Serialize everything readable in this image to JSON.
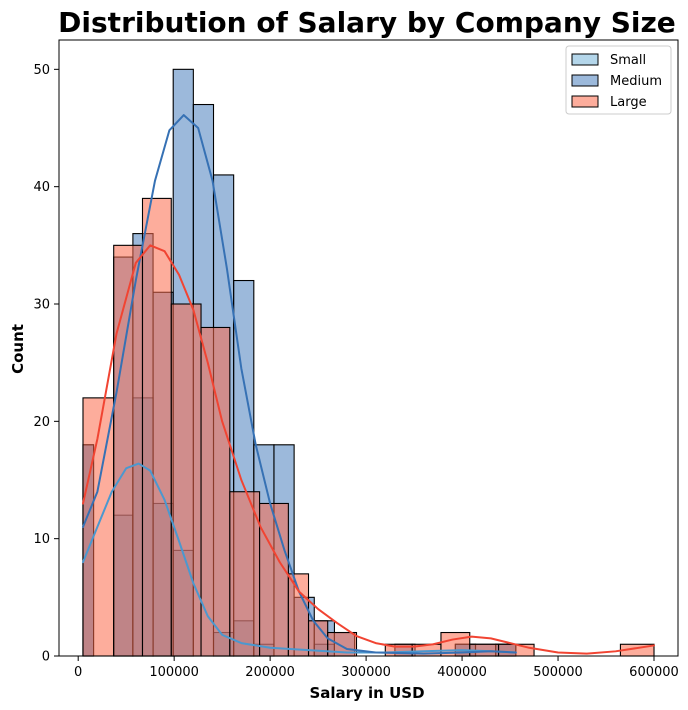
{
  "chart_data": {
    "type": "histogram",
    "title": "Distribution of Salary by Company Size",
    "xlabel": "Salary in USD",
    "ylabel": "Count",
    "xlim": [
      -20000,
      625000
    ],
    "ylim": [
      0,
      52.5
    ],
    "xticks": [
      0,
      100000,
      200000,
      300000,
      400000,
      500000,
      600000
    ],
    "yticks": [
      0,
      10,
      20,
      30,
      40,
      50
    ],
    "grid": false,
    "legend_position": "top-right",
    "series": [
      {
        "name": "Small",
        "fill": "#6aaed6",
        "fill_opacity": 0.5,
        "line": "#4b98cf",
        "bins": [
          [
            5000,
            16000,
            18
          ],
          [
            16000,
            37000,
            0
          ],
          [
            37000,
            57000,
            12
          ],
          [
            57000,
            78000,
            22
          ],
          [
            78000,
            99000,
            13
          ],
          [
            99000,
            120000,
            9
          ],
          [
            120000,
            141000,
            0
          ],
          [
            141000,
            162000,
            2
          ],
          [
            162000,
            183000,
            3
          ],
          [
            183000,
            204000,
            1
          ],
          [
            204000,
            225000,
            0
          ],
          [
            225000,
            246000,
            0
          ],
          [
            246000,
            267000,
            1
          ],
          [
            267000,
            288000,
            0
          ],
          [
            288000,
            309000,
            0
          ],
          [
            309000,
            330000,
            0
          ],
          [
            330000,
            351000,
            0
          ],
          [
            351000,
            372000,
            0
          ],
          [
            372000,
            393000,
            0
          ],
          [
            393000,
            414000,
            1
          ],
          [
            414000,
            435000,
            0
          ],
          [
            435000,
            456000,
            1
          ]
        ],
        "kde": [
          [
            5000,
            8.0
          ],
          [
            20000,
            11.0
          ],
          [
            35000,
            14.0
          ],
          [
            50000,
            16.0
          ],
          [
            63000,
            16.4
          ],
          [
            75000,
            15.8
          ],
          [
            90000,
            13.3
          ],
          [
            105000,
            9.8
          ],
          [
            120000,
            6.2
          ],
          [
            135000,
            3.4
          ],
          [
            150000,
            1.8
          ],
          [
            170000,
            1.1
          ],
          [
            200000,
            0.7
          ],
          [
            240000,
            0.5
          ],
          [
            280000,
            0.3
          ],
          [
            320000,
            0.3
          ],
          [
            360000,
            0.4
          ],
          [
            400000,
            0.5
          ],
          [
            430000,
            0.4
          ],
          [
            456000,
            0.3
          ]
        ]
      },
      {
        "name": "Medium",
        "fill": "#3a73b8",
        "fill_opacity": 0.5,
        "line": "#3671b4",
        "bins": [
          [
            5000,
            16000,
            18
          ],
          [
            16000,
            37000,
            0
          ],
          [
            37000,
            57000,
            34
          ],
          [
            57000,
            78000,
            36
          ],
          [
            78000,
            99000,
            31
          ],
          [
            99000,
            120000,
            50
          ],
          [
            120000,
            141000,
            47
          ],
          [
            141000,
            162000,
            41
          ],
          [
            162000,
            183000,
            32
          ],
          [
            183000,
            204000,
            18
          ],
          [
            204000,
            225000,
            18
          ],
          [
            225000,
            246000,
            5
          ],
          [
            246000,
            267000,
            3
          ],
          [
            267000,
            288000,
            2
          ],
          [
            288000,
            309000,
            0
          ],
          [
            309000,
            330000,
            0
          ],
          [
            330000,
            351000,
            1
          ],
          [
            351000,
            372000,
            0
          ],
          [
            372000,
            393000,
            0
          ],
          [
            393000,
            414000,
            1
          ],
          [
            414000,
            435000,
            1
          ],
          [
            435000,
            456000,
            1
          ]
        ],
        "kde": [
          [
            5000,
            11.0
          ],
          [
            20000,
            14.0
          ],
          [
            40000,
            22.5
          ],
          [
            60000,
            32.0
          ],
          [
            80000,
            40.5
          ],
          [
            95000,
            44.8
          ],
          [
            110000,
            46.1
          ],
          [
            125000,
            45.0
          ],
          [
            140000,
            40.5
          ],
          [
            155000,
            33.0
          ],
          [
            170000,
            24.5
          ],
          [
            185000,
            18.0
          ],
          [
            200000,
            13.0
          ],
          [
            215000,
            9.0
          ],
          [
            230000,
            5.5
          ],
          [
            245000,
            3.0
          ],
          [
            260000,
            1.5
          ],
          [
            280000,
            0.6
          ],
          [
            310000,
            0.3
          ],
          [
            360000,
            0.2
          ],
          [
            400000,
            0.3
          ],
          [
            430000,
            0.4
          ],
          [
            456000,
            0.3
          ]
        ]
      },
      {
        "name": "Large",
        "fill": "#fb6a4a",
        "fill_opacity": 0.55,
        "line": "#f14432",
        "bins": [
          [
            5000,
            37000,
            22
          ],
          [
            37000,
            67000,
            35
          ],
          [
            67000,
            97000,
            39
          ],
          [
            97000,
            128000,
            30
          ],
          [
            128000,
            158000,
            28
          ],
          [
            158000,
            189000,
            14
          ],
          [
            189000,
            219000,
            13
          ],
          [
            219000,
            240000,
            7
          ],
          [
            240000,
            260000,
            3
          ],
          [
            260000,
            290000,
            2
          ],
          [
            290000,
            320000,
            0
          ],
          [
            320000,
            348000,
            1
          ],
          [
            348000,
            378000,
            1
          ],
          [
            378000,
            408000,
            2
          ],
          [
            408000,
            438000,
            1
          ],
          [
            438000,
            475000,
            1
          ],
          [
            475000,
            565000,
            0
          ],
          [
            565000,
            600000,
            1
          ]
        ],
        "kde": [
          [
            5000,
            13.0
          ],
          [
            20000,
            18.5
          ],
          [
            40000,
            27.5
          ],
          [
            60000,
            33.5
          ],
          [
            75000,
            35.0
          ],
          [
            90000,
            34.5
          ],
          [
            105000,
            32.5
          ],
          [
            120000,
            29.5
          ],
          [
            135000,
            25.0
          ],
          [
            150000,
            20.0
          ],
          [
            170000,
            15.0
          ],
          [
            190000,
            11.0
          ],
          [
            210000,
            8.0
          ],
          [
            230000,
            5.5
          ],
          [
            250000,
            4.0
          ],
          [
            270000,
            2.8
          ],
          [
            290000,
            1.7
          ],
          [
            310000,
            1.1
          ],
          [
            330000,
            0.8
          ],
          [
            350000,
            0.8
          ],
          [
            370000,
            1.0
          ],
          [
            390000,
            1.4
          ],
          [
            410000,
            1.65
          ],
          [
            430000,
            1.5
          ],
          [
            450000,
            1.1
          ],
          [
            470000,
            0.7
          ],
          [
            500000,
            0.3
          ],
          [
            530000,
            0.2
          ],
          [
            560000,
            0.4
          ],
          [
            600000,
            0.9
          ]
        ]
      }
    ]
  }
}
